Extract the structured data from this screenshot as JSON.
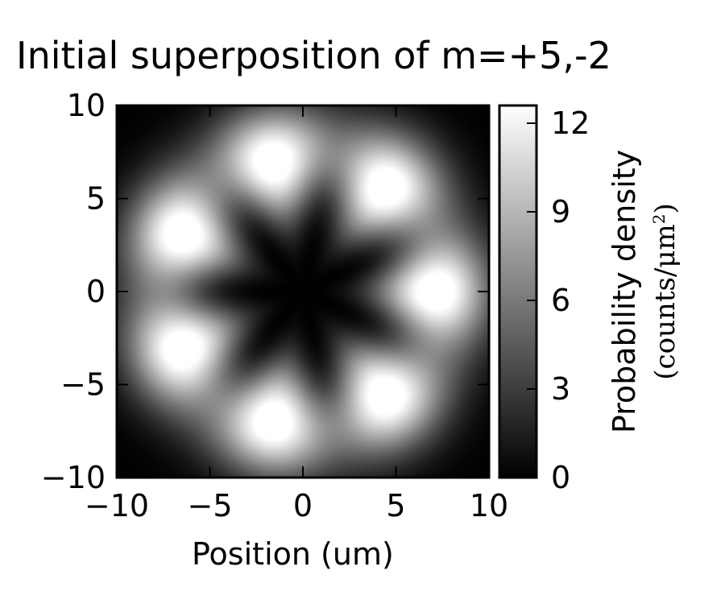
{
  "chart_data": {
    "type": "heatmap",
    "title": "Initial superposition of m=+5,-2",
    "xlabel": "Position (um)",
    "ylabel": "",
    "xlim": [
      -10,
      10
    ],
    "ylim": [
      -10,
      10
    ],
    "xticks": [
      -10,
      -5,
      0,
      5,
      10
    ],
    "yticks": [
      -10,
      -5,
      0,
      5,
      10
    ],
    "xtick_labels": [
      "−10",
      "−5",
      "0",
      "5",
      "10"
    ],
    "ytick_labels": [
      "−10",
      "−5",
      "0",
      "5",
      "10"
    ],
    "colormap": "gray",
    "colorbar": {
      "label": "Probability density",
      "unit_text": "(counts/μm",
      "unit_exponent": "2",
      "unit_close": ")",
      "range": [
        0,
        12.6
      ],
      "ticks": [
        0,
        3,
        6,
        9,
        12
      ],
      "tick_labels": [
        "0",
        "3",
        "6",
        "9",
        "12"
      ]
    },
    "field_model": {
      "description_of_values": "density |psi(r,theta)|^2 of superposition of angular modes m=+5 and m=-2",
      "m_values": [
        5,
        -2
      ],
      "ring_radius_um": 7.5,
      "ring_width_um": 2.6,
      "peak_density": 12.6,
      "lobes": 7,
      "brightest_lobe_angles_deg": [
        0,
        51,
        103,
        154,
        206,
        257,
        309
      ]
    },
    "grid": false
  }
}
